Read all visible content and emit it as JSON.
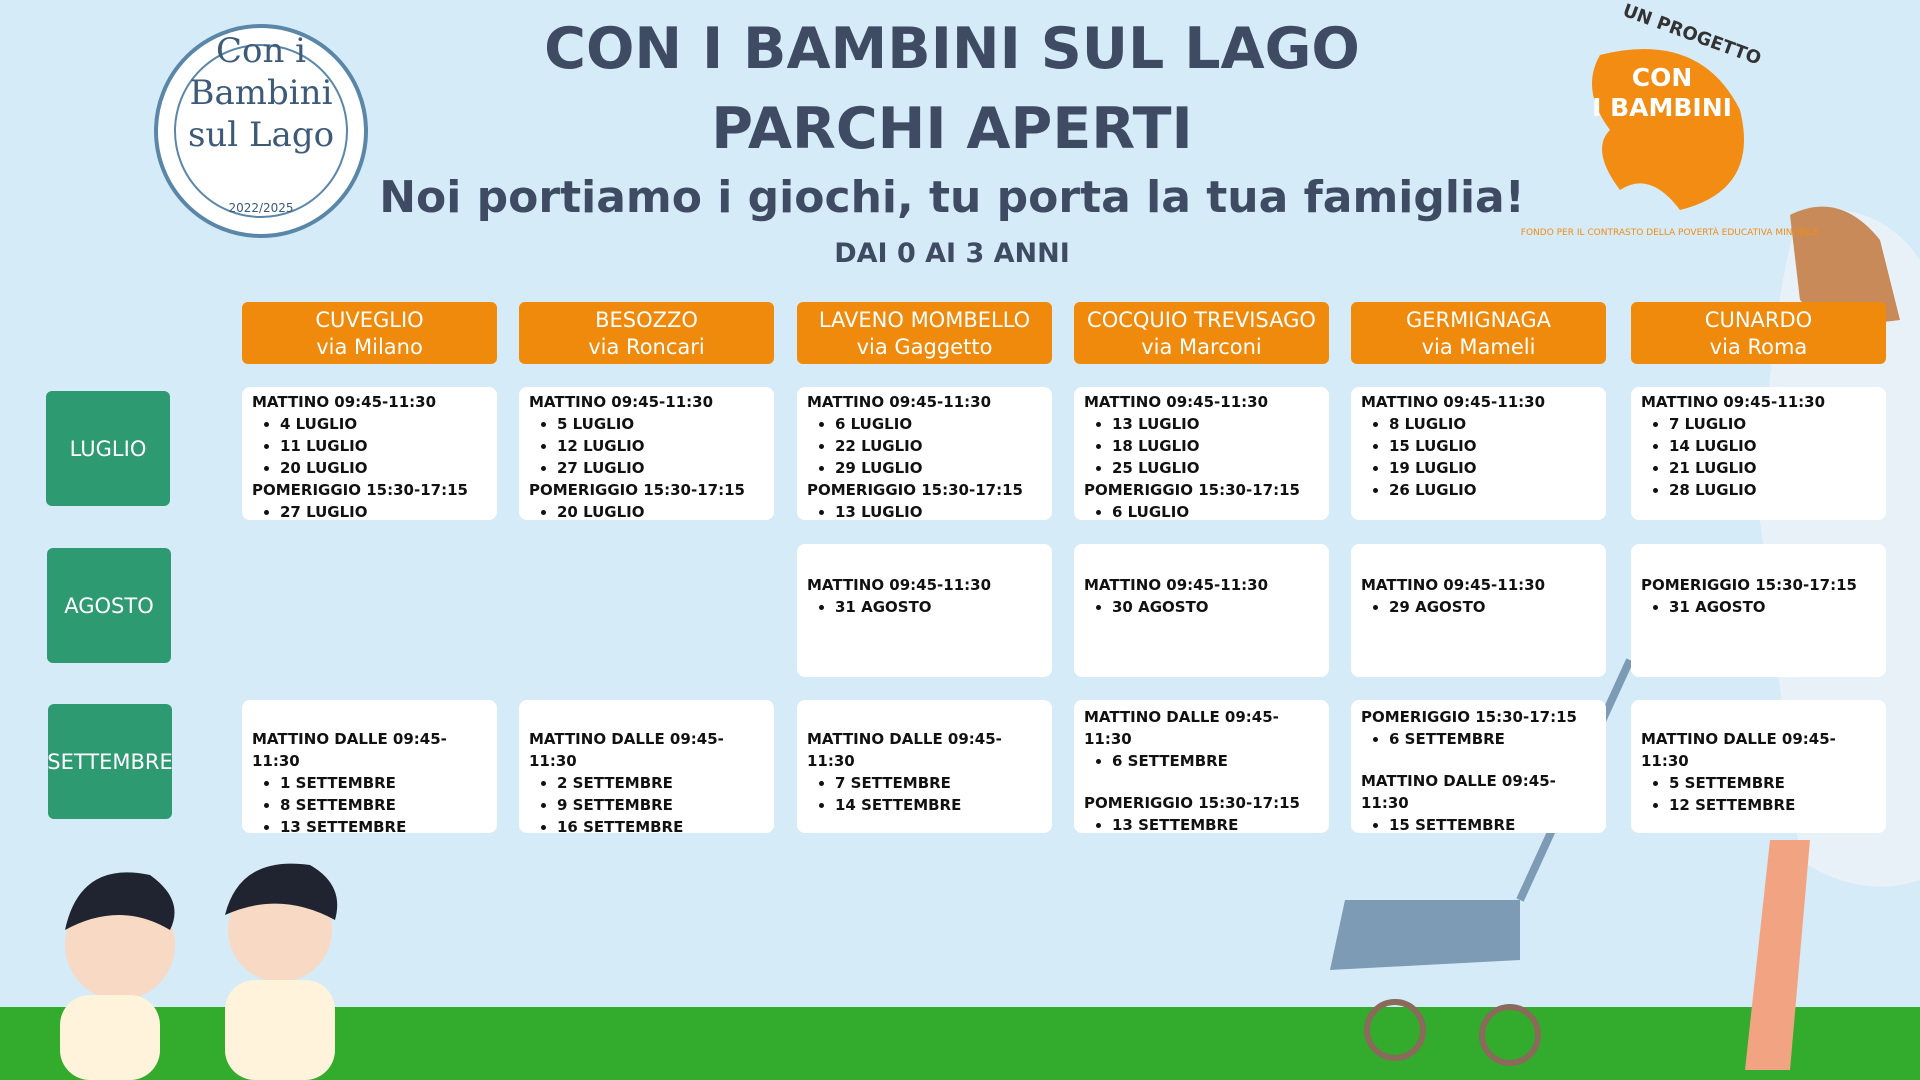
{
  "header": {
    "title_lines": [
      "CON I BAMBINI SUL LAGO",
      "PARCHI APERTI"
    ],
    "subtitle": "Noi portiamo i giochi, tu porta la tua famiglia!",
    "age": "DAI 0 AI 3 ANNI"
  },
  "logo_left": {
    "lines": [
      "Con i",
      "Bambini",
      "sul Lago"
    ],
    "years": "2022/2025"
  },
  "logo_right": {
    "top": "UN PROGETTO",
    "name_lines": [
      "CON",
      "I BAMBINI"
    ],
    "fund": "FONDO PER IL CONTRASTO DELLA POVERTÀ EDUCATIVA MINORILE"
  },
  "columns": [
    {
      "town": "CUVEGLIO",
      "street": "via Milano"
    },
    {
      "town": "BESOZZO",
      "street": "via Roncari"
    },
    {
      "town": "LAVENO MOMBELLO",
      "street": "via Gaggetto"
    },
    {
      "town": "COCQUIO TREVISAGO",
      "street": "via Marconi"
    },
    {
      "town": "GERMIGNAGA",
      "street": "via Mameli"
    },
    {
      "town": "CUNARDO",
      "street": "via Roma"
    }
  ],
  "months": [
    "LUGLIO",
    "AGOSTO",
    "SETTEMBRE"
  ],
  "schedule": [
    [
      [
        {
          "heading": "MATTINO 09:45-11:30",
          "dates": [
            "4 LUGLIO",
            "11 LUGLIO",
            "20 LUGLIO"
          ]
        },
        {
          "heading": "POMERIGGIO 15:30-17:15",
          "dates": [
            "27 LUGLIO"
          ]
        }
      ],
      [
        {
          "heading": "MATTINO 09:45-11:30",
          "dates": [
            "5 LUGLIO",
            "12 LUGLIO",
            "27 LUGLIO"
          ]
        },
        {
          "heading": "POMERIGGIO 15:30-17:15",
          "dates": [
            "20 LUGLIO"
          ]
        }
      ],
      [
        {
          "heading": "MATTINO 09:45-11:30",
          "dates": [
            "6 LUGLIO",
            "22 LUGLIO",
            "29 LUGLIO"
          ]
        },
        {
          "heading": "POMERIGGIO 15:30-17:15",
          "dates": [
            "13 LUGLIO"
          ]
        }
      ],
      [
        {
          "heading": "MATTINO  09:45-11:30",
          "dates": [
            "13 LUGLIO",
            "18 LUGLIO",
            "25 LUGLIO"
          ]
        },
        {
          "heading": "POMERIGGIO 15:30-17:15",
          "dates": [
            "6 LUGLIO"
          ]
        }
      ],
      [
        {
          "heading": "MATTINO 09:45-11:30",
          "dates": [
            "8 LUGLIO",
            "15 LUGLIO",
            "19 LUGLIO",
            "26 LUGLIO"
          ]
        }
      ],
      [
        {
          "heading": "MATTINO 09:45-11:30",
          "dates": [
            "7 LUGLIO",
            "14 LUGLIO",
            "21 LUGLIO",
            "28 LUGLIO"
          ]
        }
      ]
    ],
    [
      [],
      [],
      [
        {
          "heading": "MATTINO 09:45-11:30",
          "dates": [
            "31 AGOSTO"
          ]
        }
      ],
      [
        {
          "heading": "MATTINO 09:45-11:30",
          "dates": [
            "30 AGOSTO"
          ]
        }
      ],
      [
        {
          "heading": "MATTINO 09:45-11:30",
          "dates": [
            "29 AGOSTO"
          ]
        }
      ],
      [
        {
          "heading": "POMERIGGIO 15:30-17:15",
          "dates": [
            "31 AGOSTO"
          ]
        }
      ]
    ],
    [
      [
        {
          "heading": "MATTINO DALLE 09:45-11:30",
          "dates": [
            "1 SETTEMBRE",
            "8 SETTEMBRE",
            "13 SETTEMBRE"
          ]
        }
      ],
      [
        {
          "heading": "MATTINO DALLE 09:45-11:30",
          "dates": [
            "2 SETTEMBRE",
            "9 SETTEMBRE",
            "16 SETTEMBRE"
          ]
        }
      ],
      [
        {
          "heading": "MATTINO DALLE 09:45-11:30",
          "dates": [
            "7 SETTEMBRE",
            "14 SETTEMBRE"
          ]
        }
      ],
      [
        {
          "heading": "MATTINO DALLE 09:45-11:30",
          "dates": [
            "6 SETTEMBRE"
          ]
        },
        {
          "heading": "POMERIGGIO 15:30-17:15",
          "dates": [
            "13 SETTEMBRE"
          ]
        }
      ],
      [
        {
          "heading": "POMERIGGIO 15:30-17:15",
          "dates": [
            "6 SETTEMBRE"
          ]
        },
        {
          "heading": "MATTINO DALLE 09:45-11:30",
          "dates": [
            "15 SETTEMBRE"
          ]
        }
      ],
      [
        {
          "heading": "MATTINO DALLE 09:45-11:30",
          "dates": [
            "5 SETTEMBRE",
            "12 SETTEMBRE"
          ]
        }
      ]
    ]
  ]
}
